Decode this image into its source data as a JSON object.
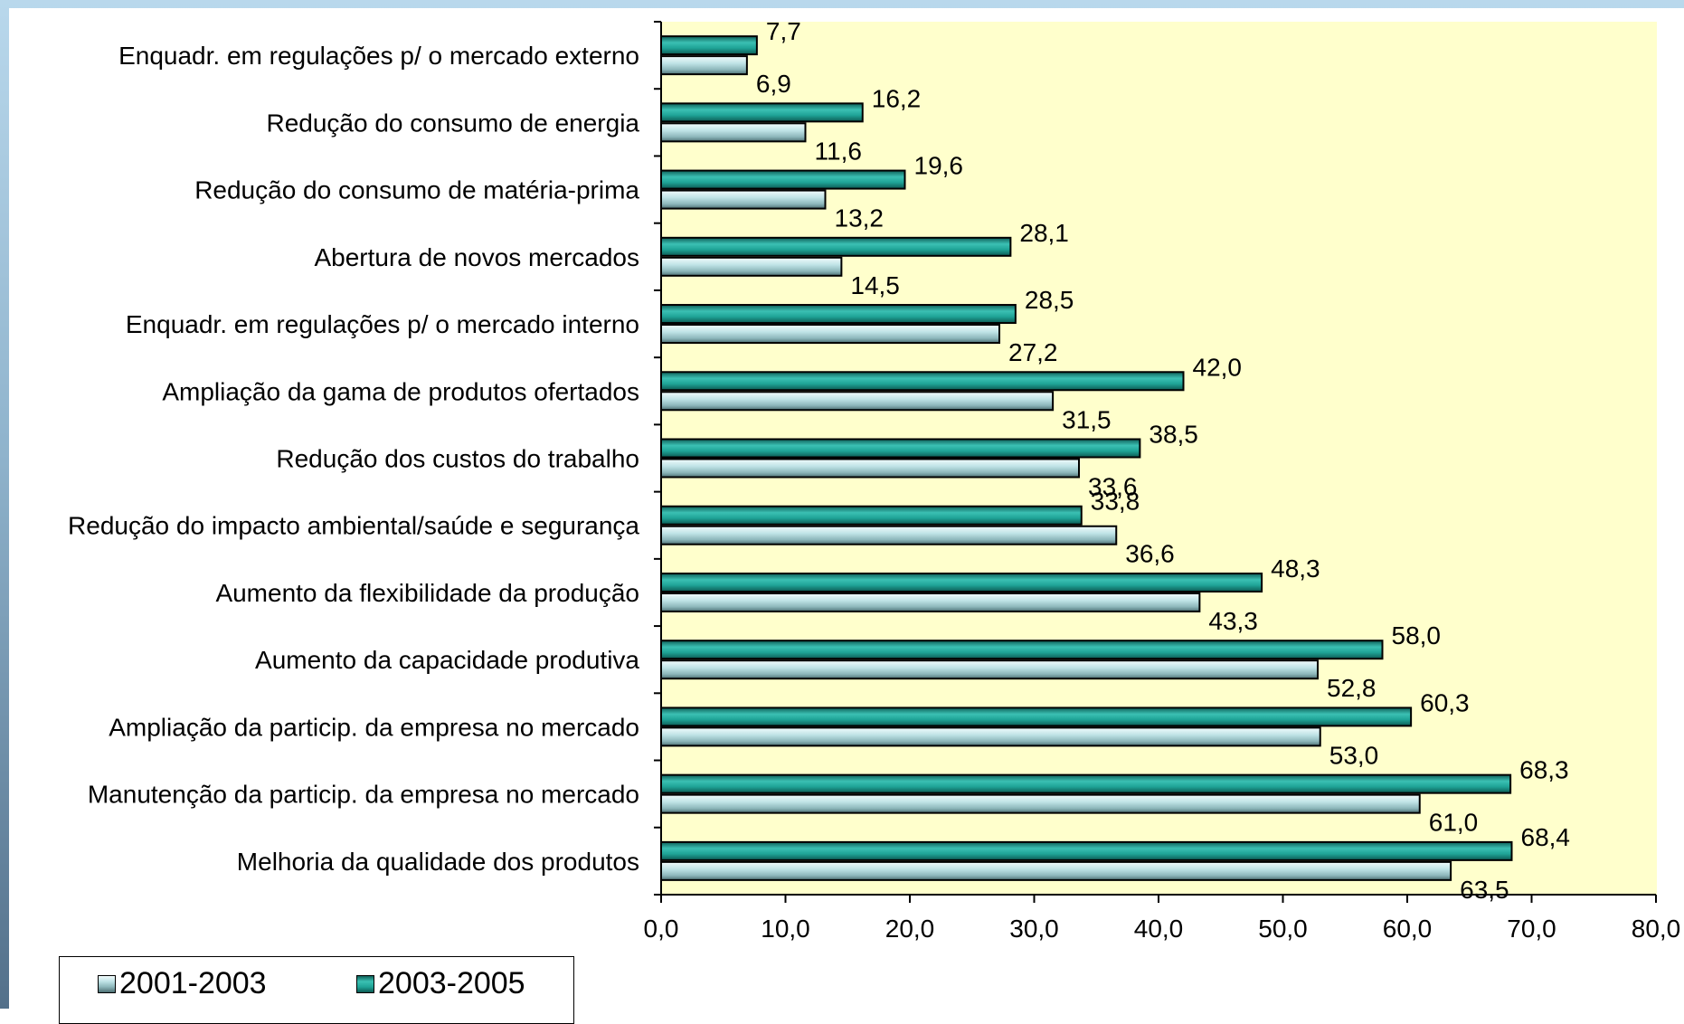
{
  "chart_data": {
    "type": "bar",
    "orientation": "horizontal",
    "categories": [
      "Enquadr. em regulações p/ o mercado externo",
      "Redução do consumo de energia",
      "Redução do consumo de matéria-prima",
      "Abertura de novos mercados",
      "Enquadr. em regulações p/ o mercado interno",
      "Ampliação da gama de produtos ofertados",
      "Redução dos custos do trabalho",
      "Redução do impacto ambiental/saúde e segurança",
      "Aumento da flexibilidade da produção",
      "Aumento da capacidade produtiva",
      "Ampliação da particip. da empresa no mercado",
      "Manutenção da particip. da empresa no mercado",
      "Melhoria da qualidade dos produtos"
    ],
    "series": [
      {
        "name": "2003-2005",
        "color": "#1a9f93",
        "values": [
          7.7,
          16.2,
          19.6,
          28.1,
          28.5,
          42.0,
          38.5,
          33.8,
          48.3,
          58.0,
          60.3,
          68.3,
          68.4
        ],
        "labels": [
          "7,7",
          "16,2",
          "19,6",
          "28,1",
          "28,5",
          "42,0",
          "38,5",
          "33,8",
          "48,3",
          "58,0",
          "60,3",
          "68,3",
          "68,4"
        ]
      },
      {
        "name": "2001-2003",
        "color": "#b7dcdf",
        "values": [
          6.9,
          11.6,
          13.2,
          14.5,
          27.2,
          31.5,
          33.6,
          36.6,
          43.3,
          52.8,
          53.0,
          61.0,
          63.5
        ],
        "labels": [
          "6,9",
          "11,6",
          "13,2",
          "14,5",
          "27,2",
          "31,5",
          "33,6",
          "36,6",
          "43,3",
          "52,8",
          "53,0",
          "61,0",
          "63,5"
        ]
      }
    ],
    "xlim": [
      0,
      80
    ],
    "xticks": [
      0,
      10,
      20,
      30,
      40,
      50,
      60,
      70,
      80
    ],
    "xtick_labels": [
      "0,0",
      "10,0",
      "20,0",
      "30,0",
      "40,0",
      "50,0",
      "60,0",
      "70,0",
      "80,0"
    ],
    "plot_background": "#ffffcc",
    "grid": false,
    "legend_position": "bottom-left",
    "legend": [
      {
        "name": "2001-2003",
        "color": "#b7dcdf"
      },
      {
        "name": "2003-2005",
        "color": "#1a9f93"
      }
    ]
  }
}
